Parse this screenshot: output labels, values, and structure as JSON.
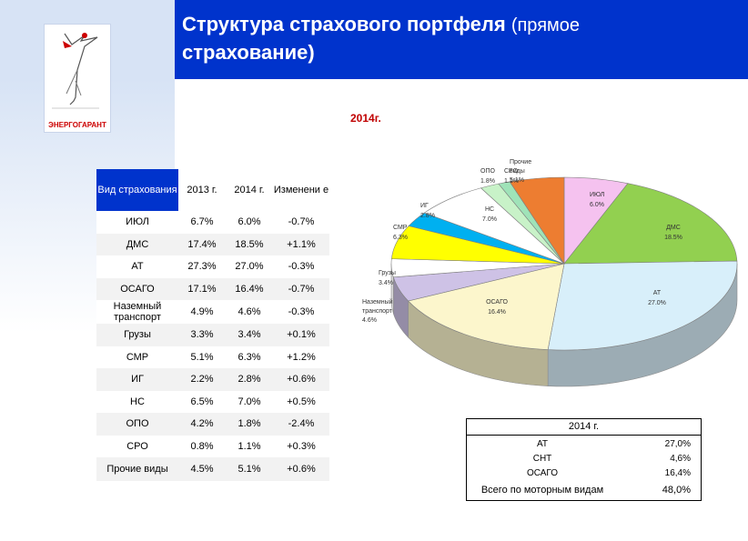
{
  "title_main": "Структура страхового портфеля",
  "title_paren": "(прямое",
  "title_line2": "страхование)",
  "logo_text": "ЭНЕРГОГАРАНТ",
  "year_label": "2014г.",
  "table": {
    "headers": [
      "Вид страхования",
      "2013 г.",
      "2014 г.",
      "Изменени е"
    ],
    "rows": [
      {
        "name": "ИЮЛ",
        "y2013": "6.7%",
        "y2014": "6.0%",
        "change": "-0.7%"
      },
      {
        "name": "ДМС",
        "y2013": "17.4%",
        "y2014": "18.5%",
        "change": "+1.1%"
      },
      {
        "name": "АТ",
        "y2013": "27.3%",
        "y2014": "27.0%",
        "change": "-0.3%"
      },
      {
        "name": "ОСАГО",
        "y2013": "17.1%",
        "y2014": "16.4%",
        "change": "-0.7%"
      },
      {
        "name": "Наземный транспорт",
        "y2013": "4.9%",
        "y2014": "4.6%",
        "change": "-0.3%"
      },
      {
        "name": "Грузы",
        "y2013": "3.3%",
        "y2014": "3.4%",
        "change": "+0.1%"
      },
      {
        "name": "СМР",
        "y2013": "5.1%",
        "y2014": "6.3%",
        "change": "+1.2%"
      },
      {
        "name": "ИГ",
        "y2013": "2.2%",
        "y2014": "2.8%",
        "change": "+0.6%"
      },
      {
        "name": "НС",
        "y2013": "6.5%",
        "y2014": "7.0%",
        "change": "+0.5%"
      },
      {
        "name": "ОПО",
        "y2013": "4.2%",
        "y2014": "1.8%",
        "change": "-2.4%"
      },
      {
        "name": "СРО",
        "y2013": "0.8%",
        "y2014": "1.1%",
        "change": "+0.3%"
      },
      {
        "name": "Прочие виды",
        "y2013": "4.5%",
        "y2014": "5.1%",
        "change": "+0.6%"
      }
    ]
  },
  "chart_data": {
    "type": "pie",
    "title": "2014г.",
    "style": "3d",
    "slices": [
      {
        "label": "ИЮЛ",
        "pct_label": "6.0%",
        "value": 6.0,
        "color": "#f5c2ef"
      },
      {
        "label": "ДМС",
        "pct_label": "18.5%",
        "value": 18.5,
        "color": "#92d050"
      },
      {
        "label": "АТ",
        "pct_label": "27.0%",
        "value": 27.0,
        "color": "#d8effa"
      },
      {
        "label": "ОСАГО",
        "pct_label": "16.4%",
        "value": 16.4,
        "color": "#fcf6cc"
      },
      {
        "label": "Наземный транспорт",
        "pct_label": "4.6%",
        "value": 4.6,
        "color": "#cec2e6"
      },
      {
        "label": "Грузы",
        "pct_label": "3.4%",
        "value": 3.4,
        "color": "#ffffff"
      },
      {
        "label": "СМР",
        "pct_label": "6.3%",
        "value": 6.3,
        "color": "#ffff00"
      },
      {
        "label": "ИГ",
        "pct_label": "2.8%",
        "value": 2.8,
        "color": "#00b0f0"
      },
      {
        "label": "НС",
        "pct_label": "7.0%",
        "value": 7.0,
        "color": "#ffffff"
      },
      {
        "label": "ОПО",
        "pct_label": "1.8%",
        "value": 1.8,
        "color": "#c8f2c8"
      },
      {
        "label": "СРО",
        "pct_label": "1.1%",
        "value": 1.1,
        "color": "#9fe3b8"
      },
      {
        "label": "Прочие виды",
        "pct_label": "5.1%",
        "value": 5.1,
        "color": "#ed7d31"
      }
    ]
  },
  "summary": {
    "year": "2014 г.",
    "rows": [
      {
        "label": "АТ",
        "value": "27,0%"
      },
      {
        "label": "СНТ",
        "value": "4,6%"
      },
      {
        "label": "ОСАГО",
        "value": "16,4%"
      },
      {
        "label": "Всего по моторным видам",
        "value": "48,0%"
      }
    ]
  },
  "colors": {
    "header_blue": "#0033cc",
    "year_red": "#c00000",
    "side_band": "#d7e3f5"
  }
}
